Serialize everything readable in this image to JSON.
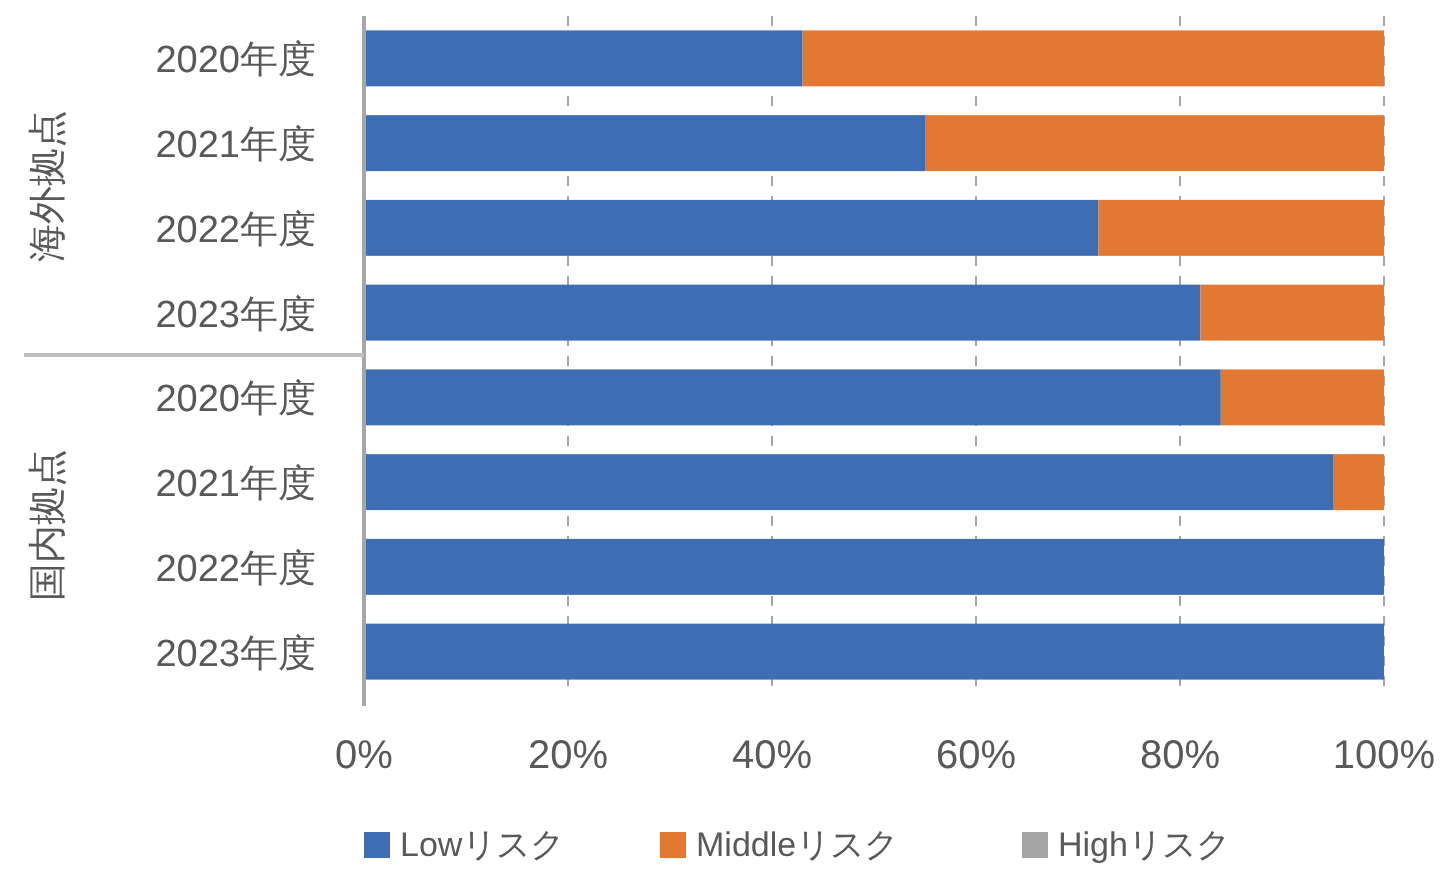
{
  "chart_data": {
    "type": "bar",
    "orientation": "horizontal",
    "stacked": true,
    "categories": [
      "2020年度",
      "2021年度",
      "2022年度",
      "2023年度",
      "2020年度",
      "2021年度",
      "2022年度",
      "2023年度"
    ],
    "series": [
      {
        "name": "Lowリスク",
        "color": "#3f6db3",
        "values": [
          43,
          55,
          72,
          82,
          84,
          95,
          100,
          100
        ]
      },
      {
        "name": "Middleリスク",
        "color": "#e27832",
        "values": [
          57,
          45,
          28,
          18,
          16,
          5,
          0,
          0
        ]
      },
      {
        "name": "Highリスク",
        "color": "#a5a5a5",
        "values": [
          0,
          0,
          0,
          0,
          0,
          0,
          0,
          0
        ]
      }
    ],
    "xlim": [
      0,
      100
    ],
    "xticks": [
      {
        "value": 0,
        "label": "0%"
      },
      {
        "value": 20,
        "label": "20%"
      },
      {
        "value": 40,
        "label": "40%"
      },
      {
        "value": 60,
        "label": "60%"
      },
      {
        "value": 80,
        "label": "80%"
      },
      {
        "value": 100,
        "label": "100%"
      }
    ],
    "annotations": [
      "海外拠点",
      "国内拠点"
    ],
    "grid": "x",
    "legend": "bottom"
  }
}
